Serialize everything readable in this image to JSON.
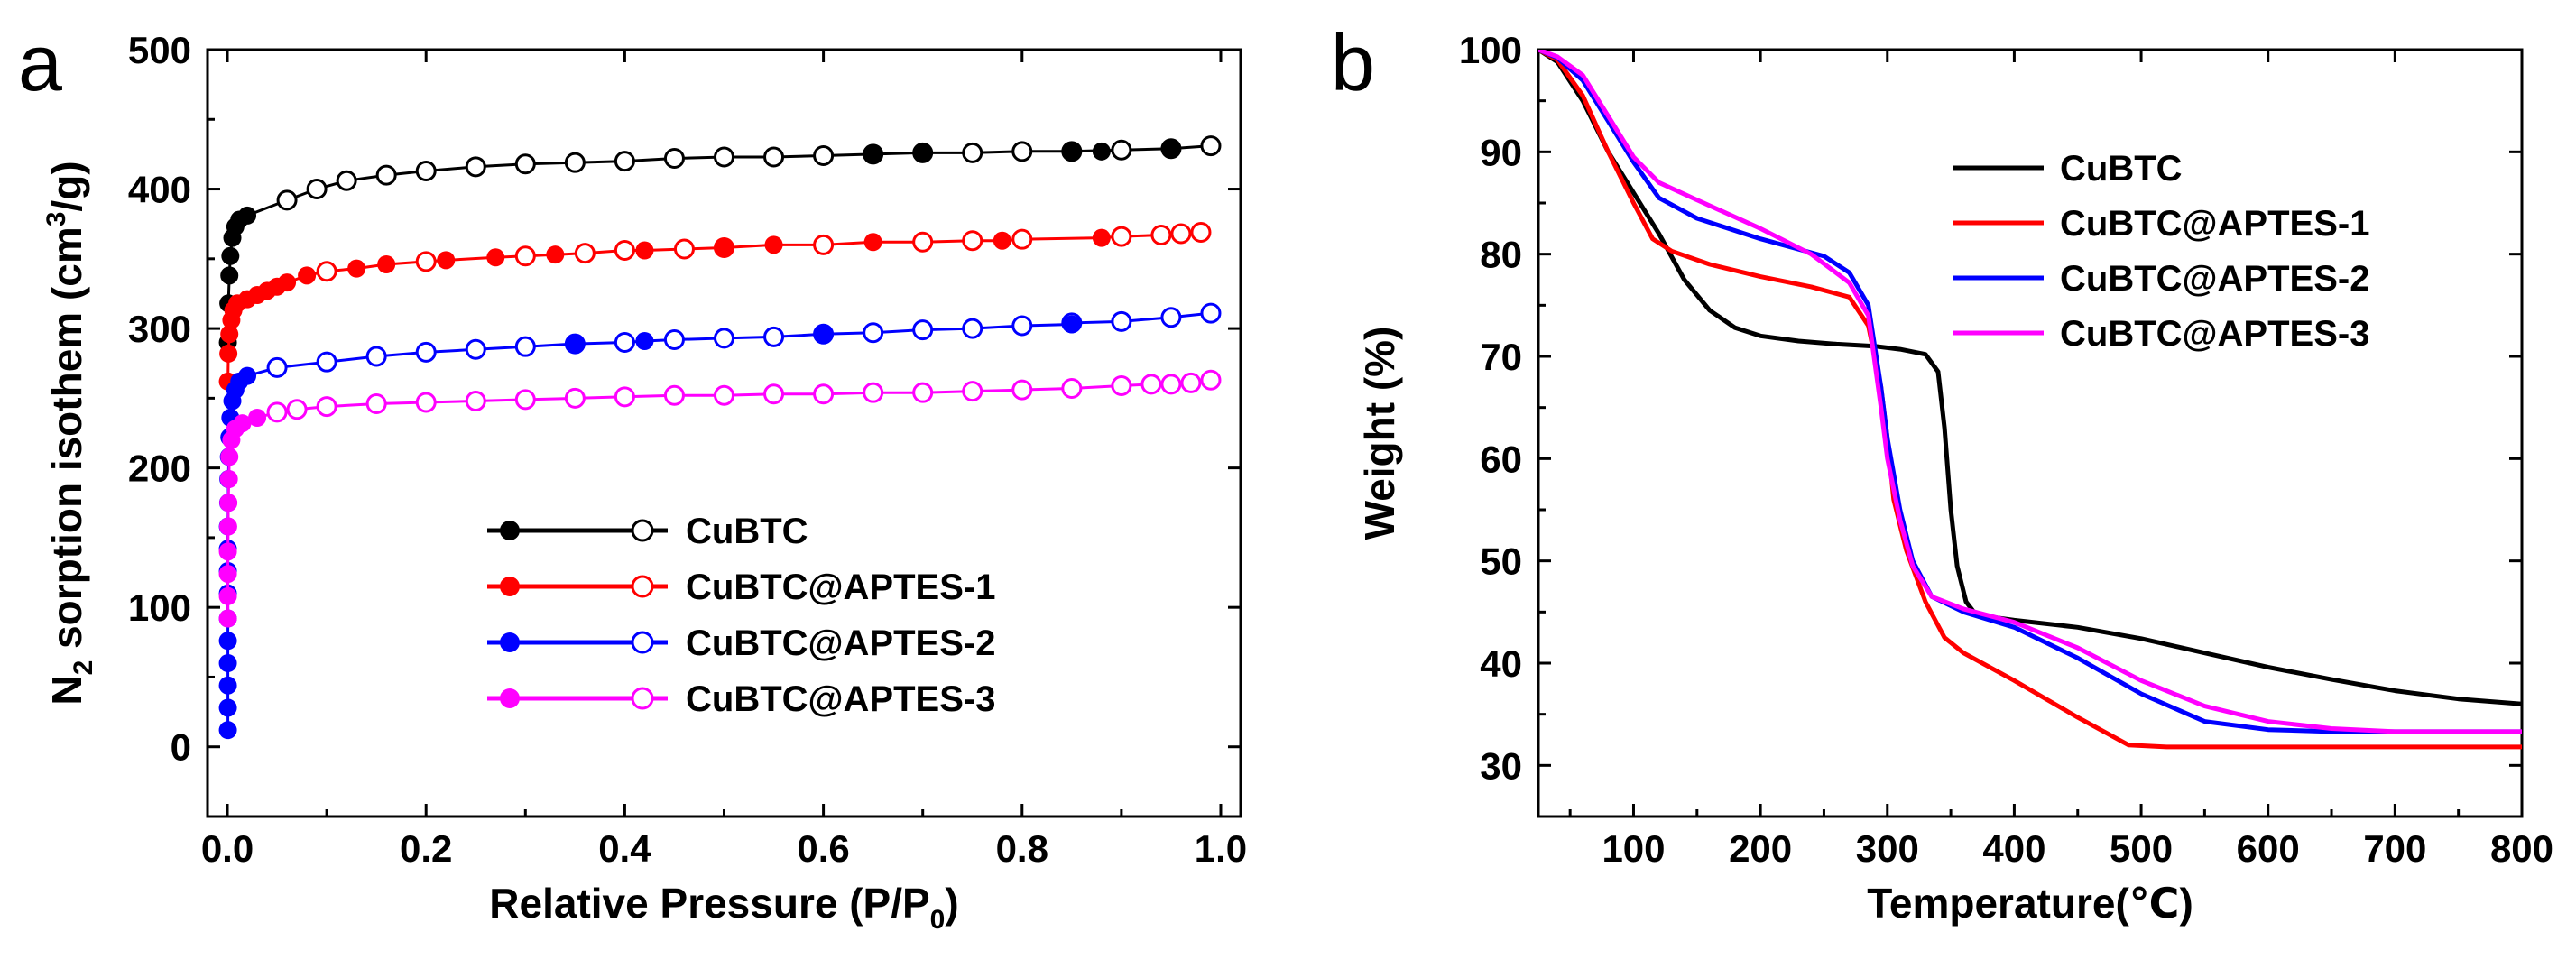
{
  "chart_data": [
    {
      "panel": "a",
      "type": "scatter",
      "xlabel_main": "Relative Pressure (P/P",
      "xlabel_sub": "0",
      "xlabel_end": ")",
      "ylabel_prefix": "N",
      "ylabel_sub": "2",
      "ylabel_main": " sorption isothem (cm",
      "ylabel_sup": "3",
      "ylabel_end": "/g)",
      "xlim": [
        -0.02,
        1.02
      ],
      "ylim": [
        -50,
        500
      ],
      "xticks": [
        "0.0",
        "0.2",
        "0.4",
        "0.6",
        "0.8",
        "1.0"
      ],
      "xtick_values": [
        0,
        0.2,
        0.4,
        0.6,
        0.8,
        1.0
      ],
      "yticks": [
        "0",
        "100",
        "200",
        "300",
        "400",
        "500"
      ],
      "ytick_values": [
        0,
        100,
        200,
        300,
        400,
        500
      ],
      "series": [
        {
          "name": "CuBTC",
          "color": "#000000",
          "adsorption": [
            [
              0.0005,
              290
            ],
            [
              0.001,
              318
            ],
            [
              0.002,
              338
            ],
            [
              0.003,
              352
            ],
            [
              0.005,
              365
            ],
            [
              0.008,
              373
            ],
            [
              0.012,
              378
            ],
            [
              0.02,
              381
            ]
          ],
          "desorption": [
            [
              0.06,
              392
            ],
            [
              0.09,
              400
            ],
            [
              0.12,
              406
            ],
            [
              0.16,
              410
            ],
            [
              0.2,
              413
            ],
            [
              0.25,
              416
            ],
            [
              0.3,
              418
            ],
            [
              0.35,
              419
            ],
            [
              0.4,
              420
            ],
            [
              0.45,
              422
            ],
            [
              0.5,
              423
            ],
            [
              0.55,
              423
            ],
            [
              0.6,
              424
            ],
            [
              0.65,
              425
            ],
            [
              0.7,
              426
            ],
            [
              0.75,
              426
            ],
            [
              0.8,
              427
            ],
            [
              0.85,
              427
            ],
            [
              0.9,
              428
            ],
            [
              0.95,
              429
            ],
            [
              0.99,
              431
            ]
          ],
          "adsorption_hi": [
            [
              0.65,
              425
            ],
            [
              0.7,
              426
            ],
            [
              0.85,
              427
            ],
            [
              0.88,
              427
            ],
            [
              0.95,
              429
            ]
          ]
        },
        {
          "name": "CuBTC@APTES-1",
          "color": "#ff0000",
          "adsorption": [
            [
              0.0005,
              262
            ],
            [
              0.001,
              282
            ],
            [
              0.002,
              296
            ],
            [
              0.004,
              306
            ],
            [
              0.006,
              313
            ],
            [
              0.01,
              318
            ],
            [
              0.02,
              321
            ],
            [
              0.03,
              324
            ],
            [
              0.04,
              327
            ],
            [
              0.05,
              330
            ],
            [
              0.06,
              333
            ],
            [
              0.08,
              338
            ],
            [
              0.13,
              343
            ],
            [
              0.16,
              346
            ],
            [
              0.22,
              349
            ],
            [
              0.27,
              351
            ],
            [
              0.33,
              353
            ],
            [
              0.42,
              356
            ],
            [
              0.5,
              358
            ],
            [
              0.55,
              360
            ],
            [
              0.65,
              362
            ],
            [
              0.78,
              363
            ],
            [
              0.88,
              365
            ]
          ],
          "desorption": [
            [
              0.1,
              341
            ],
            [
              0.2,
              348
            ],
            [
              0.3,
              352
            ],
            [
              0.36,
              354
            ],
            [
              0.4,
              356
            ],
            [
              0.46,
              357
            ],
            [
              0.5,
              358
            ],
            [
              0.6,
              360
            ],
            [
              0.7,
              362
            ],
            [
              0.75,
              363
            ],
            [
              0.8,
              364
            ],
            [
              0.9,
              366
            ],
            [
              0.94,
              367
            ],
            [
              0.96,
              368
            ],
            [
              0.98,
              369
            ]
          ]
        },
        {
          "name": "CuBTC@APTES-2",
          "color": "#0000ff",
          "adsorption": [
            [
              0.0005,
              12
            ],
            [
              0.0005,
              28
            ],
            [
              0.0005,
              44
            ],
            [
              0.0005,
              60
            ],
            [
              0.0005,
              76
            ],
            [
              0.0005,
              92
            ],
            [
              0.0005,
              110
            ],
            [
              0.0005,
              126
            ],
            [
              0.0005,
              142
            ],
            [
              0.0005,
              158
            ],
            [
              0.0008,
              175
            ],
            [
              0.001,
              192
            ],
            [
              0.0015,
              208
            ],
            [
              0.002,
              222
            ],
            [
              0.003,
              236
            ],
            [
              0.005,
              248
            ],
            [
              0.008,
              256
            ],
            [
              0.012,
              262
            ],
            [
              0.02,
              266
            ],
            [
              0.35,
              289
            ],
            [
              0.42,
              291
            ],
            [
              0.6,
              296
            ],
            [
              0.85,
              303
            ]
          ],
          "desorption": [
            [
              0.05,
              272
            ],
            [
              0.1,
              276
            ],
            [
              0.15,
              280
            ],
            [
              0.2,
              283
            ],
            [
              0.25,
              285
            ],
            [
              0.3,
              287
            ],
            [
              0.35,
              289
            ],
            [
              0.4,
              290
            ],
            [
              0.45,
              292
            ],
            [
              0.5,
              293
            ],
            [
              0.55,
              294
            ],
            [
              0.6,
              296
            ],
            [
              0.65,
              297
            ],
            [
              0.7,
              299
            ],
            [
              0.75,
              300
            ],
            [
              0.8,
              302
            ],
            [
              0.85,
              304
            ],
            [
              0.9,
              305
            ],
            [
              0.95,
              308
            ],
            [
              0.99,
              311
            ]
          ]
        },
        {
          "name": "CuBTC@APTES-3",
          "color": "#ff00ff",
          "adsorption": [
            [
              0.0005,
              92
            ],
            [
              0.0005,
              108
            ],
            [
              0.0005,
              124
            ],
            [
              0.0005,
              140
            ],
            [
              0.0008,
              158
            ],
            [
              0.001,
              175
            ],
            [
              0.0015,
              192
            ],
            [
              0.002,
              208
            ],
            [
              0.004,
              220
            ],
            [
              0.008,
              228
            ],
            [
              0.015,
              232
            ],
            [
              0.03,
              236
            ]
          ],
          "desorption": [
            [
              0.05,
              240
            ],
            [
              0.07,
              242
            ],
            [
              0.1,
              244
            ],
            [
              0.15,
              246
            ],
            [
              0.2,
              247
            ],
            [
              0.25,
              248
            ],
            [
              0.3,
              249
            ],
            [
              0.35,
              250
            ],
            [
              0.4,
              251
            ],
            [
              0.45,
              252
            ],
            [
              0.5,
              252
            ],
            [
              0.55,
              253
            ],
            [
              0.6,
              253
            ],
            [
              0.65,
              254
            ],
            [
              0.7,
              254
            ],
            [
              0.75,
              255
            ],
            [
              0.8,
              256
            ],
            [
              0.85,
              257
            ],
            [
              0.9,
              259
            ],
            [
              0.93,
              260
            ],
            [
              0.95,
              260
            ],
            [
              0.97,
              261
            ],
            [
              0.99,
              263
            ]
          ]
        }
      ],
      "legend_position": "lower-right"
    },
    {
      "panel": "b",
      "type": "line",
      "xlabel": "Temperature(℃)",
      "ylabel": "Weight (%)",
      "xlim": [
        25,
        800
      ],
      "ylim": [
        25,
        100
      ],
      "xticks": [
        "100",
        "200",
        "300",
        "400",
        "500",
        "600",
        "700",
        "800"
      ],
      "xtick_values": [
        100,
        200,
        300,
        400,
        500,
        600,
        700,
        800
      ],
      "yticks": [
        "30",
        "40",
        "50",
        "60",
        "70",
        "80",
        "90",
        "100"
      ],
      "ytick_values": [
        30,
        40,
        50,
        60,
        70,
        80,
        90,
        100
      ],
      "series": [
        {
          "name": "CuBTC",
          "color": "#000000",
          "points": [
            [
              25,
              100
            ],
            [
              40,
              98.8
            ],
            [
              60,
              95
            ],
            [
              80,
              90
            ],
            [
              100,
              86
            ],
            [
              120,
              82
            ],
            [
              140,
              77.5
            ],
            [
              160,
              74.5
            ],
            [
              180,
              72.8
            ],
            [
              200,
              72
            ],
            [
              230,
              71.5
            ],
            [
              260,
              71.2
            ],
            [
              290,
              71
            ],
            [
              310,
              70.7
            ],
            [
              330,
              70.2
            ],
            [
              340,
              68.5
            ],
            [
              345,
              63
            ],
            [
              350,
              55
            ],
            [
              355,
              49.5
            ],
            [
              362,
              46
            ],
            [
              370,
              44.7
            ],
            [
              400,
              44.2
            ],
            [
              450,
              43.5
            ],
            [
              500,
              42.4
            ],
            [
              550,
              41
            ],
            [
              600,
              39.6
            ],
            [
              650,
              38.4
            ],
            [
              700,
              37.3
            ],
            [
              750,
              36.5
            ],
            [
              800,
              36
            ]
          ]
        },
        {
          "name": "CuBTC@APTES-1",
          "color": "#ff0000",
          "points": [
            [
              25,
              100
            ],
            [
              40,
              99
            ],
            [
              60,
              95.5
            ],
            [
              80,
              90
            ],
            [
              100,
              85
            ],
            [
              115,
              81.5
            ],
            [
              130,
              80.3
            ],
            [
              160,
              79
            ],
            [
              200,
              77.8
            ],
            [
              240,
              76.8
            ],
            [
              270,
              75.8
            ],
            [
              285,
              73
            ],
            [
              295,
              67
            ],
            [
              300,
              62
            ],
            [
              305,
              56
            ],
            [
              315,
              51
            ],
            [
              330,
              46
            ],
            [
              345,
              42.5
            ],
            [
              360,
              41
            ],
            [
              400,
              38.3
            ],
            [
              450,
              34.7
            ],
            [
              490,
              32
            ],
            [
              520,
              31.8
            ],
            [
              600,
              31.8
            ],
            [
              700,
              31.8
            ],
            [
              800,
              31.8
            ]
          ]
        },
        {
          "name": "CuBTC@APTES-2",
          "color": "#0000ff",
          "points": [
            [
              25,
              100
            ],
            [
              40,
              99.2
            ],
            [
              60,
              97
            ],
            [
              80,
              93
            ],
            [
              100,
              89
            ],
            [
              120,
              85.5
            ],
            [
              150,
              83.5
            ],
            [
              200,
              81.5
            ],
            [
              250,
              79.8
            ],
            [
              270,
              78.2
            ],
            [
              285,
              75
            ],
            [
              295,
              67
            ],
            [
              300,
              62
            ],
            [
              310,
              55
            ],
            [
              320,
              50
            ],
            [
              335,
              46.5
            ],
            [
              360,
              45
            ],
            [
              400,
              43.5
            ],
            [
              450,
              40.5
            ],
            [
              500,
              37
            ],
            [
              550,
              34.3
            ],
            [
              600,
              33.5
            ],
            [
              650,
              33.3
            ],
            [
              700,
              33.3
            ],
            [
              800,
              33.3
            ]
          ]
        },
        {
          "name": "CuBTC@APTES-3",
          "color": "#ff00ff",
          "points": [
            [
              25,
              100
            ],
            [
              40,
              99.3
            ],
            [
              60,
              97.5
            ],
            [
              80,
              93.5
            ],
            [
              100,
              89.5
            ],
            [
              120,
              87
            ],
            [
              150,
              85.3
            ],
            [
              200,
              82.5
            ],
            [
              240,
              80
            ],
            [
              270,
              77.2
            ],
            [
              285,
              74
            ],
            [
              295,
              65
            ],
            [
              300,
              60
            ],
            [
              310,
              54
            ],
            [
              320,
              49.5
            ],
            [
              335,
              46.5
            ],
            [
              360,
              45.3
            ],
            [
              400,
              44
            ],
            [
              450,
              41.5
            ],
            [
              500,
              38.3
            ],
            [
              550,
              35.8
            ],
            [
              600,
              34.3
            ],
            [
              650,
              33.6
            ],
            [
              700,
              33.3
            ],
            [
              800,
              33.3
            ]
          ]
        }
      ],
      "legend_position": "top-right"
    }
  ]
}
